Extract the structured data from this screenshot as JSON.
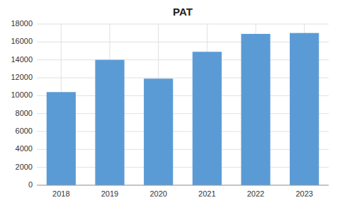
{
  "chart_data": {
    "type": "bar",
    "title": "PAT",
    "categories": [
      "2018",
      "2019",
      "2020",
      "2021",
      "2022",
      "2023"
    ],
    "values": [
      10400,
      14000,
      11900,
      14900,
      16900,
      17000
    ],
    "color": "#5B9BD5",
    "ylim": [
      0,
      18000
    ],
    "yticks": [
      0,
      2000,
      4000,
      6000,
      8000,
      10000,
      12000,
      14000,
      16000,
      18000
    ],
    "grid": true
  }
}
